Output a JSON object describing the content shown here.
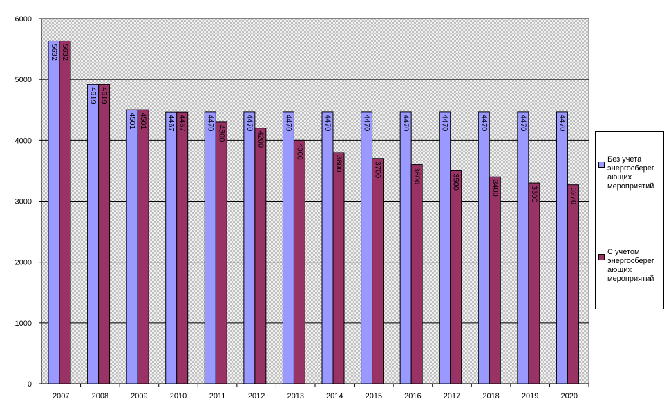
{
  "chart_data": {
    "type": "bar",
    "categories": [
      "2007",
      "2008",
      "2009",
      "2010",
      "2011",
      "2012",
      "2013",
      "2014",
      "2015",
      "2016",
      "2017",
      "2018",
      "2019",
      "2020"
    ],
    "series": [
      {
        "name": "Без учета энергосберег ающих мероприятий",
        "color": "#9999ff",
        "values": [
          5632,
          4919,
          4501,
          4467,
          4470,
          4470,
          4470,
          4470,
          4470,
          4470,
          4470,
          4470,
          4470,
          4470
        ]
      },
      {
        "name": "С учетом энергосберег ающих мероприятий",
        "color": "#993366",
        "values": [
          5632,
          4919,
          4501,
          4467,
          4300,
          4200,
          4000,
          3800,
          3700,
          3600,
          3500,
          3400,
          3300,
          3270
        ]
      }
    ],
    "ylim": [
      0,
      6000
    ],
    "yticks": [
      "0",
      "1000",
      "2000",
      "3000",
      "4000",
      "5000",
      "6000"
    ],
    "title": "",
    "xlabel": "",
    "ylabel": "",
    "grid": true,
    "legend": "right",
    "plot_background": "#c0c0c0"
  }
}
